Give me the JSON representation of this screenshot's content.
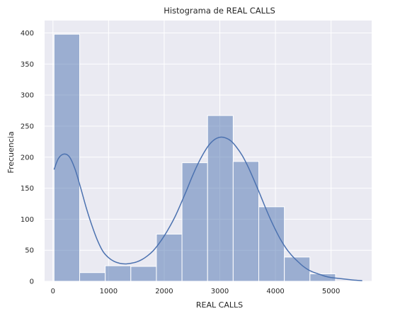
{
  "chart_data": {
    "type": "bar",
    "title": "Histograma de REAL CALLS",
    "xlabel": "REAL CALLS",
    "ylabel": "Frecuencia",
    "xlim": [
      -150,
      5730
    ],
    "ylim": [
      0,
      420
    ],
    "x_ticks": [
      0,
      1000,
      2000,
      3000,
      4000,
      5000
    ],
    "y_ticks": [
      0,
      50,
      100,
      150,
      200,
      250,
      300,
      350,
      400
    ],
    "grid": true,
    "bins": [
      {
        "start": 20,
        "end": 480,
        "count": 398
      },
      {
        "start": 480,
        "end": 940,
        "count": 14
      },
      {
        "start": 940,
        "end": 1400,
        "count": 25
      },
      {
        "start": 1400,
        "end": 1860,
        "count": 24
      },
      {
        "start": 1860,
        "end": 2320,
        "count": 76
      },
      {
        "start": 2320,
        "end": 2780,
        "count": 191
      },
      {
        "start": 2780,
        "end": 3240,
        "count": 267
      },
      {
        "start": 3240,
        "end": 3700,
        "count": 193
      },
      {
        "start": 3700,
        "end": 4160,
        "count": 120
      },
      {
        "start": 4160,
        "end": 4620,
        "count": 39
      },
      {
        "start": 4620,
        "end": 5080,
        "count": 12
      }
    ],
    "kde": {
      "x": [
        20,
        100,
        200,
        300,
        400,
        500,
        600,
        700,
        800,
        900,
        1000,
        1100,
        1200,
        1300,
        1400,
        1500,
        1600,
        1700,
        1800,
        1900,
        2000,
        2100,
        2200,
        2300,
        2400,
        2500,
        2600,
        2700,
        2800,
        2900,
        3000,
        3100,
        3200,
        3300,
        3400,
        3500,
        3600,
        3700,
        3800,
        3900,
        4000,
        4100,
        4200,
        4300,
        4400,
        4500,
        4600,
        4700,
        4800,
        4900,
        5000,
        5100,
        5200,
        5300,
        5400,
        5560
      ],
      "y": [
        180,
        198,
        205,
        200,
        180,
        150,
        118,
        90,
        66,
        48,
        38,
        32,
        29,
        28,
        29,
        31,
        35,
        41,
        49,
        60,
        73,
        88,
        105,
        125,
        146,
        168,
        188,
        205,
        219,
        228,
        232,
        231,
        226,
        216,
        203,
        186,
        166,
        145,
        123,
        102,
        83,
        66,
        52,
        41,
        32,
        24,
        18,
        14,
        11,
        8,
        6,
        5,
        4,
        3,
        2,
        1
      ],
      "color": "#4c72b0"
    },
    "bar_color": "#4c72b0",
    "background": "#eaeaf2"
  }
}
